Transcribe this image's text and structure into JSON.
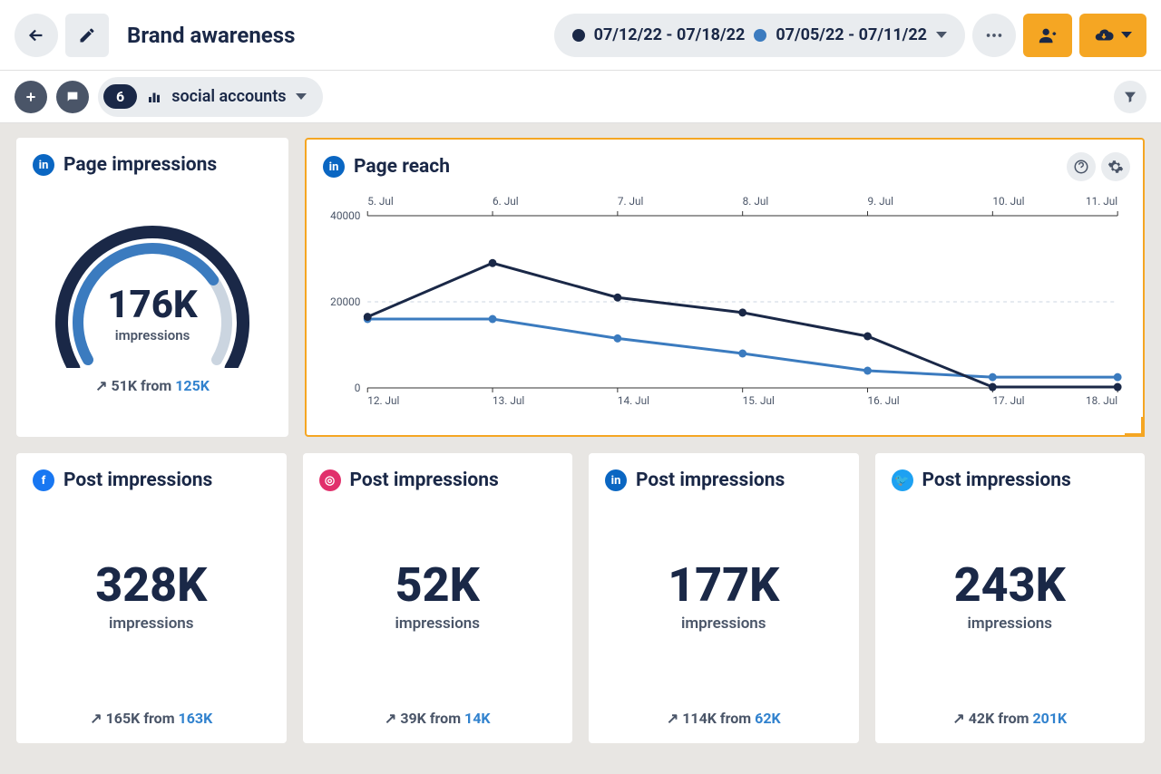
{
  "header": {
    "title": "Brand awareness",
    "date_range_1": "07/12/22 - 07/18/22",
    "date_range_2": "07/05/22 - 07/11/22",
    "dot1_color": "#1a2847",
    "dot2_color": "#3b7bbf"
  },
  "filterbar": {
    "count": "6",
    "label": "social accounts"
  },
  "gauge": {
    "title": "Page impressions",
    "platform": "linkedin",
    "platform_color": "#0a66c2",
    "value": "176K",
    "sublabel": "impressions",
    "delta_prefix": "51K from",
    "delta_link": "125K",
    "arc_outer_color": "#1a2847",
    "arc_inner_color": "#3b7bbf",
    "arc_track_color": "#cbd5e0",
    "outer_fill_deg": 240,
    "inner_fill_deg": 175
  },
  "chart": {
    "title": "Page reach",
    "platform": "linkedin",
    "platform_color": "#0a66c2",
    "y_max": 40000,
    "y_ticks": [
      0,
      20000,
      40000
    ],
    "x_labels_top": [
      "5. Jul",
      "6. Jul",
      "7. Jul",
      "8. Jul",
      "9. Jul",
      "10. Jul",
      "11. Jul"
    ],
    "x_labels_bottom": [
      "12. Jul",
      "13. Jul",
      "14. Jul",
      "15. Jul",
      "16. Jul",
      "17. Jul",
      "18. Jul"
    ],
    "series1": {
      "color": "#1a2847",
      "values": [
        16500,
        29000,
        21000,
        17500,
        12000,
        200,
        200
      ]
    },
    "series2": {
      "color": "#3b7bbf",
      "values": [
        16000,
        16000,
        11500,
        8000,
        4000,
        2500,
        2500
      ]
    },
    "grid_color": "#cbd5e0",
    "axis_color": "#333333",
    "label_color": "#4a5568",
    "font_size": 12
  },
  "metrics": [
    {
      "platform": "facebook",
      "platform_color": "#1877f2",
      "title": "Post impressions",
      "value": "328K",
      "sublabel": "impressions",
      "delta_prefix": "165K from",
      "delta_link": "163K"
    },
    {
      "platform": "instagram",
      "platform_color": "#e1306c",
      "title": "Post impressions",
      "value": "52K",
      "sublabel": "impressions",
      "delta_prefix": "39K from",
      "delta_link": "14K"
    },
    {
      "platform": "linkedin",
      "platform_color": "#0a66c2",
      "title": "Post impressions",
      "value": "177K",
      "sublabel": "impressions",
      "delta_prefix": "114K from",
      "delta_link": "62K"
    },
    {
      "platform": "twitter",
      "platform_color": "#1da1f2",
      "title": "Post impressions",
      "value": "243K",
      "sublabel": "impressions",
      "delta_prefix": "42K from",
      "delta_link": "201K"
    }
  ]
}
